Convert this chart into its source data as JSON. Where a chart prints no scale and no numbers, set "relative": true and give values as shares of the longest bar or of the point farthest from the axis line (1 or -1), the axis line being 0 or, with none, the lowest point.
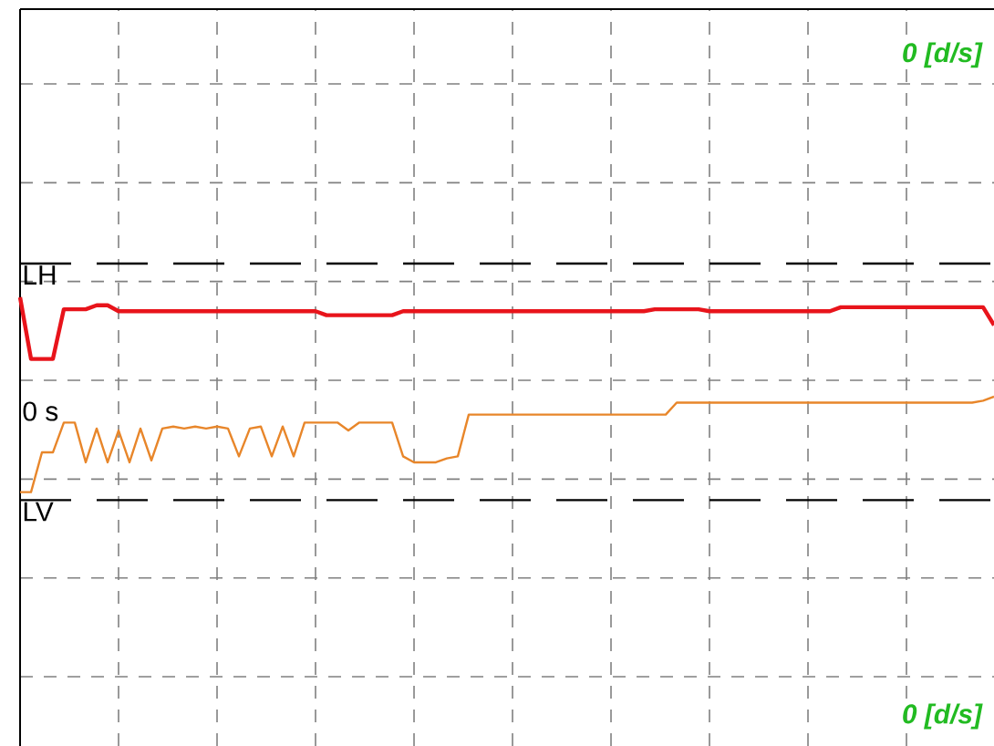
{
  "chart_data": {
    "type": "line",
    "relative": true,
    "grid": true,
    "tick_labels": false,
    "categories": [
      null,
      null,
      null,
      null,
      null,
      null,
      null,
      null,
      null,
      null,
      null,
      null,
      null,
      null,
      null,
      null,
      null,
      null,
      null,
      null,
      null,
      null,
      null,
      null,
      null,
      null,
      null,
      null,
      null,
      null,
      null,
      null,
      null,
      null,
      null,
      null,
      null,
      null,
      null,
      null,
      null,
      null,
      null,
      null,
      null,
      null,
      null,
      null,
      null,
      null,
      null,
      null,
      null,
      null,
      null,
      null,
      null,
      null,
      null,
      null,
      null,
      null,
      null,
      null,
      null,
      null,
      null,
      null,
      null,
      null,
      null,
      null,
      null,
      null,
      null,
      null,
      null,
      null,
      null,
      null,
      null,
      null,
      null,
      null,
      null,
      null,
      null,
      null,
      null,
      null
    ],
    "series": [
      {
        "color": "#e8141b",
        "values": [
          1.0,
          0.69,
          0.69,
          0.69,
          0.94,
          0.94,
          0.94,
          0.96,
          0.96,
          0.93,
          0.93,
          0.93,
          0.93,
          0.93,
          0.93,
          0.93,
          0.93,
          0.93,
          0.93,
          0.93,
          0.93,
          0.93,
          0.93,
          0.93,
          0.93,
          0.93,
          0.93,
          0.93,
          0.91,
          0.91,
          0.91,
          0.91,
          0.91,
          0.91,
          0.91,
          0.93,
          0.93,
          0.93,
          0.93,
          0.93,
          0.93,
          0.93,
          0.93,
          0.93,
          0.93,
          0.93,
          0.93,
          0.93,
          0.93,
          0.93,
          0.93,
          0.93,
          0.93,
          0.93,
          0.93,
          0.93,
          0.93,
          0.93,
          0.94,
          0.94,
          0.94,
          0.94,
          0.94,
          0.93,
          0.93,
          0.93,
          0.93,
          0.93,
          0.93,
          0.93,
          0.93,
          0.93,
          0.93,
          0.93,
          0.93,
          0.95,
          0.95,
          0.95,
          0.95,
          0.95,
          0.95,
          0.95,
          0.95,
          0.95,
          0.95,
          0.95,
          0.95,
          0.95,
          0.95,
          0.86
        ]
      },
      {
        "color": "#e8862a",
        "values": [
          0.02,
          0.02,
          0.22,
          0.22,
          0.37,
          0.37,
          0.17,
          0.34,
          0.17,
          0.33,
          0.17,
          0.34,
          0.18,
          0.34,
          0.35,
          0.34,
          0.35,
          0.34,
          0.35,
          0.34,
          0.2,
          0.34,
          0.35,
          0.2,
          0.35,
          0.2,
          0.37,
          0.37,
          0.37,
          0.37,
          0.33,
          0.37,
          0.37,
          0.37,
          0.37,
          0.2,
          0.17,
          0.17,
          0.17,
          0.19,
          0.2,
          0.41,
          0.41,
          0.41,
          0.41,
          0.41,
          0.41,
          0.41,
          0.41,
          0.41,
          0.41,
          0.41,
          0.41,
          0.41,
          0.41,
          0.41,
          0.41,
          0.41,
          0.41,
          0.41,
          0.47,
          0.47,
          0.47,
          0.47,
          0.47,
          0.47,
          0.47,
          0.47,
          0.47,
          0.47,
          0.47,
          0.47,
          0.47,
          0.47,
          0.47,
          0.47,
          0.47,
          0.47,
          0.47,
          0.47,
          0.47,
          0.47,
          0.47,
          0.47,
          0.47,
          0.47,
          0.47,
          0.47,
          0.48,
          0.5
        ]
      }
    ],
    "ref_lines": [
      {
        "axis": "y",
        "value": 1.17,
        "label": "LH",
        "color": "#000000",
        "line_style": "dashed"
      },
      {
        "axis": "y",
        "value": -0.02,
        "label": "LV",
        "color": "#000000",
        "line_style": "dashed"
      }
    ],
    "annotations": [
      "0 [d/s]",
      "0 s",
      "0 [d/s]"
    ]
  }
}
